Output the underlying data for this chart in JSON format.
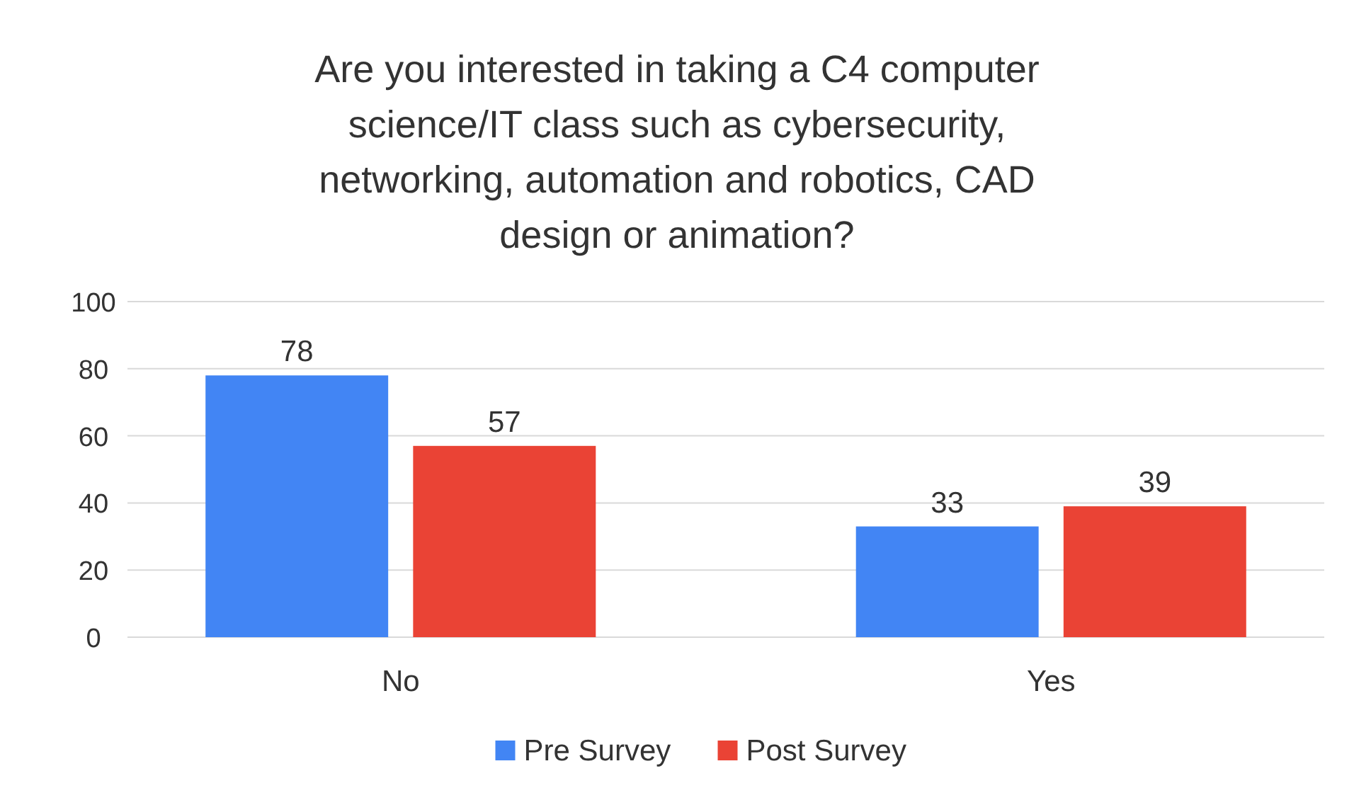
{
  "chart_data": {
    "type": "bar",
    "title": "Are you interested in taking a C4 computer science/IT class such as cybersecurity, networking, automation and robotics, CAD design or animation?",
    "categories": [
      "No",
      "Yes"
    ],
    "series": [
      {
        "name": "Pre Survey",
        "color": "#4285f4",
        "values": [
          78,
          33
        ]
      },
      {
        "name": "Post Survey",
        "color": "#ea4335",
        "values": [
          57,
          39
        ]
      }
    ],
    "ylim": [
      0,
      100
    ],
    "yticks": [
      0,
      20,
      40,
      60,
      80,
      100
    ],
    "grid": "y",
    "legend": "bottom",
    "data_labels": true
  }
}
